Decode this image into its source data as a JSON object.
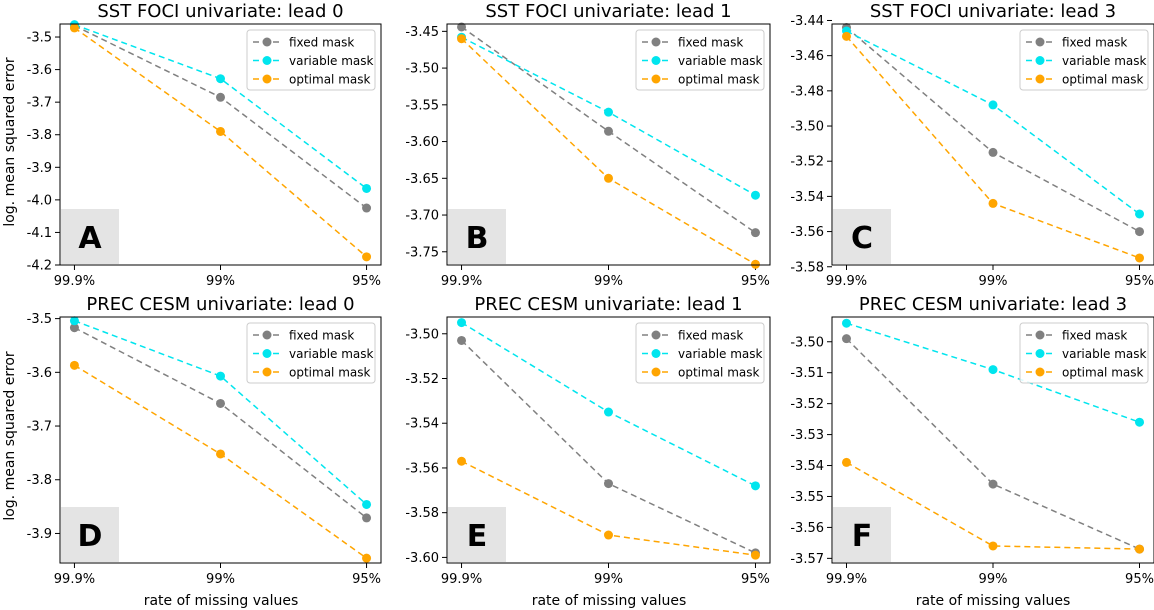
{
  "shared": {
    "ylabel": "log. mean squared error",
    "xlabel": "rate of missing values",
    "categories": [
      "99.9%",
      "99%",
      "95%"
    ],
    "colors": {
      "fixed mask": "#808080",
      "variable mask": "#00e5ee",
      "optimal mask": "#ffa500"
    }
  },
  "chart_data": [
    {
      "type": "line",
      "panel": "A",
      "title": "SST FOCI univariate: lead 0",
      "ylim": [
        -4.2,
        -3.46
      ],
      "yticks": [
        -3.5,
        -3.6,
        -3.7,
        -3.8,
        -3.9,
        -4.0,
        -4.1,
        -4.2
      ],
      "ytick_labels": [
        "-3.5",
        "-3.6",
        "-3.7",
        "-3.8",
        "-3.9",
        "-4.0",
        "-4.1",
        "-4.2"
      ],
      "legend": "top-right",
      "series": [
        {
          "name": "fixed mask",
          "values": [
            -3.465,
            -3.685,
            -4.025
          ]
        },
        {
          "name": "variable mask",
          "values": [
            -3.462,
            -3.628,
            -3.965
          ]
        },
        {
          "name": "optimal mask",
          "values": [
            -3.472,
            -3.79,
            -4.175
          ]
        }
      ]
    },
    {
      "type": "line",
      "panel": "B",
      "title": "SST FOCI univariate: lead 1",
      "ylim": [
        -3.768,
        -3.44
      ],
      "yticks": [
        -3.45,
        -3.5,
        -3.55,
        -3.6,
        -3.65,
        -3.7,
        -3.75
      ],
      "ytick_labels": [
        "-3.45",
        "-3.50",
        "-3.55",
        "-3.60",
        "-3.65",
        "-3.70",
        "-3.75"
      ],
      "legend": "top-right",
      "series": [
        {
          "name": "fixed mask",
          "values": [
            -3.444,
            -3.586,
            -3.724
          ]
        },
        {
          "name": "variable mask",
          "values": [
            -3.458,
            -3.56,
            -3.673
          ]
        },
        {
          "name": "optimal mask",
          "values": [
            -3.46,
            -3.65,
            -3.767
          ]
        }
      ]
    },
    {
      "type": "line",
      "panel": "C",
      "title": "SST FOCI univariate: lead 3",
      "ylim": [
        -3.579,
        -3.442
      ],
      "yticks": [
        -3.44,
        -3.46,
        -3.48,
        -3.5,
        -3.52,
        -3.54,
        -3.56,
        -3.58
      ],
      "ytick_labels": [
        "-3.44",
        "-3.46",
        "-3.48",
        "-3.50",
        "-3.52",
        "-3.54",
        "-3.56",
        "-3.58"
      ],
      "legend": "top-right",
      "series": [
        {
          "name": "fixed mask",
          "values": [
            -3.444,
            -3.515,
            -3.56
          ]
        },
        {
          "name": "variable mask",
          "values": [
            -3.446,
            -3.488,
            -3.55
          ]
        },
        {
          "name": "optimal mask",
          "values": [
            -3.449,
            -3.544,
            -3.575
          ]
        }
      ]
    },
    {
      "type": "line",
      "panel": "D",
      "title": "PREC CESM univariate: lead 0",
      "ylim": [
        -3.955,
        -3.497
      ],
      "yticks": [
        -3.5,
        -3.6,
        -3.7,
        -3.8,
        -3.9
      ],
      "ytick_labels": [
        "-3.5",
        "-3.6",
        "-3.7",
        "-3.8",
        "-3.9"
      ],
      "legend": "top-right",
      "series": [
        {
          "name": "fixed mask",
          "values": [
            -3.517,
            -3.658,
            -3.871
          ]
        },
        {
          "name": "variable mask",
          "values": [
            -3.504,
            -3.607,
            -3.846
          ]
        },
        {
          "name": "optimal mask",
          "values": [
            -3.587,
            -3.752,
            -3.946
          ]
        }
      ]
    },
    {
      "type": "line",
      "panel": "E",
      "title": "PREC CESM univariate: lead 1",
      "ylim": [
        -3.6025,
        -3.4925
      ],
      "yticks": [
        -3.5,
        -3.52,
        -3.54,
        -3.56,
        -3.58,
        -3.6
      ],
      "ytick_labels": [
        "-3.50",
        "-3.52",
        "-3.54",
        "-3.56",
        "-3.58",
        "-3.60"
      ],
      "legend": "top-right",
      "series": [
        {
          "name": "fixed mask",
          "values": [
            -3.503,
            -3.567,
            -3.598
          ]
        },
        {
          "name": "variable mask",
          "values": [
            -3.495,
            -3.535,
            -3.568
          ]
        },
        {
          "name": "optimal mask",
          "values": [
            -3.557,
            -3.59,
            -3.599
          ]
        }
      ]
    },
    {
      "type": "line",
      "panel": "F",
      "title": "PREC CESM univariate: lead 3",
      "ylim": [
        -3.5715,
        -3.492
      ],
      "yticks": [
        -3.5,
        -3.51,
        -3.52,
        -3.53,
        -3.54,
        -3.55,
        -3.56,
        -3.57
      ],
      "ytick_labels": [
        "-3.50",
        "-3.51",
        "-3.52",
        "-3.53",
        "-3.54",
        "-3.55",
        "-3.56",
        "-3.57"
      ],
      "legend": "top-right",
      "series": [
        {
          "name": "fixed mask",
          "values": [
            -3.499,
            -3.546,
            -3.567
          ]
        },
        {
          "name": "variable mask",
          "values": [
            -3.494,
            -3.509,
            -3.526
          ]
        },
        {
          "name": "optimal mask",
          "values": [
            -3.539,
            -3.566,
            -3.567
          ]
        }
      ]
    }
  ]
}
